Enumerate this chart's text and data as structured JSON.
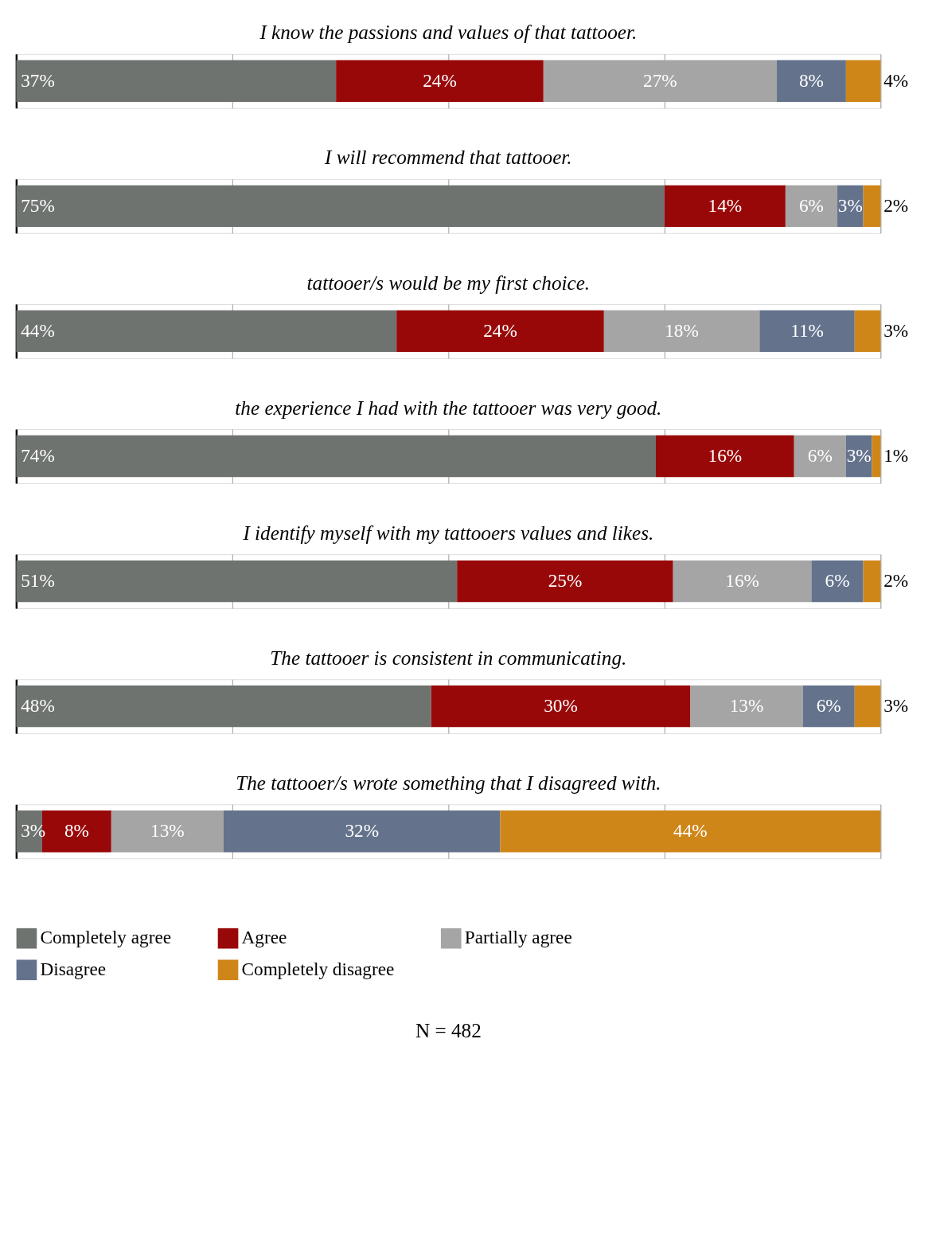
{
  "chart_data": [
    {
      "type": "bar",
      "orientation": "horizontal",
      "stacked": true,
      "title": "I know the passions and values of that tattooer.",
      "categories": [
        null
      ],
      "xlim": [
        0,
        100
      ],
      "xticks": [
        {
          "value": 0,
          "label": null
        },
        {
          "value": 25,
          "label": null
        },
        {
          "value": 50,
          "label": null
        },
        {
          "value": 75,
          "label": null
        },
        {
          "value": 100,
          "label": null
        }
      ],
      "tick_labels": false,
      "grid": "x",
      "legend": false,
      "series": [
        {
          "color": "#6e7370",
          "values": [
            37
          ],
          "value_labels": [
            "37%"
          ]
        },
        {
          "color": "#990808",
          "values": [
            24
          ],
          "value_labels": [
            "24%"
          ]
        },
        {
          "color": "#a5a5a5",
          "values": [
            27
          ],
          "value_labels": [
            "27%"
          ]
        },
        {
          "color": "#64728c",
          "values": [
            8
          ],
          "value_labels": [
            "8%"
          ]
        },
        {
          "color": "#cf8619",
          "values": [
            4
          ],
          "value_labels": [
            "4%"
          ]
        }
      ]
    },
    {
      "type": "bar",
      "orientation": "horizontal",
      "stacked": true,
      "title": "I will recommend that tattooer.",
      "categories": [
        null
      ],
      "xlim": [
        0,
        100
      ],
      "xticks": [
        {
          "value": 0,
          "label": null
        },
        {
          "value": 25,
          "label": null
        },
        {
          "value": 50,
          "label": null
        },
        {
          "value": 75,
          "label": null
        },
        {
          "value": 100,
          "label": null
        }
      ],
      "tick_labels": false,
      "grid": "x",
      "legend": false,
      "series": [
        {
          "color": "#6e7370",
          "values": [
            75
          ],
          "value_labels": [
            "75%"
          ]
        },
        {
          "color": "#990808",
          "values": [
            14
          ],
          "value_labels": [
            "14%"
          ]
        },
        {
          "color": "#a5a5a5",
          "values": [
            6
          ],
          "value_labels": [
            "6%"
          ]
        },
        {
          "color": "#64728c",
          "values": [
            3
          ],
          "value_labels": [
            "3%"
          ]
        },
        {
          "color": "#cf8619",
          "values": [
            2
          ],
          "value_labels": [
            "2%"
          ]
        }
      ]
    },
    {
      "type": "bar",
      "orientation": "horizontal",
      "stacked": true,
      "title": "tattooer/s would be my first choice.",
      "categories": [
        null
      ],
      "xlim": [
        0,
        100
      ],
      "xticks": [
        {
          "value": 0,
          "label": null
        },
        {
          "value": 25,
          "label": null
        },
        {
          "value": 50,
          "label": null
        },
        {
          "value": 75,
          "label": null
        },
        {
          "value": 100,
          "label": null
        }
      ],
      "tick_labels": false,
      "grid": "x",
      "legend": false,
      "series": [
        {
          "color": "#6e7370",
          "values": [
            44
          ],
          "value_labels": [
            "44%"
          ]
        },
        {
          "color": "#990808",
          "values": [
            24
          ],
          "value_labels": [
            "24%"
          ]
        },
        {
          "color": "#a5a5a5",
          "values": [
            18
          ],
          "value_labels": [
            "18%"
          ]
        },
        {
          "color": "#64728c",
          "values": [
            11
          ],
          "value_labels": [
            "11%"
          ]
        },
        {
          "color": "#cf8619",
          "values": [
            3
          ],
          "value_labels": [
            "3%"
          ]
        }
      ]
    },
    {
      "type": "bar",
      "orientation": "horizontal",
      "stacked": true,
      "title": "the experience I had with the tattooer was very good.",
      "categories": [
        null
      ],
      "xlim": [
        0,
        100
      ],
      "xticks": [
        {
          "value": 0,
          "label": null
        },
        {
          "value": 25,
          "label": null
        },
        {
          "value": 50,
          "label": null
        },
        {
          "value": 75,
          "label": null
        },
        {
          "value": 100,
          "label": null
        }
      ],
      "tick_labels": false,
      "grid": "x",
      "legend": false,
      "series": [
        {
          "color": "#6e7370",
          "values": [
            74
          ],
          "value_labels": [
            "74%"
          ]
        },
        {
          "color": "#990808",
          "values": [
            16
          ],
          "value_labels": [
            "16%"
          ]
        },
        {
          "color": "#a5a5a5",
          "values": [
            6
          ],
          "value_labels": [
            "6%"
          ]
        },
        {
          "color": "#64728c",
          "values": [
            3
          ],
          "value_labels": [
            "3%"
          ]
        },
        {
          "color": "#cf8619",
          "values": [
            1
          ],
          "value_labels": [
            "1%"
          ]
        }
      ]
    },
    {
      "type": "bar",
      "orientation": "horizontal",
      "stacked": true,
      "title": "I identify myself with my tattooers values and likes.",
      "categories": [
        null
      ],
      "xlim": [
        0,
        100
      ],
      "xticks": [
        {
          "value": 0,
          "label": null
        },
        {
          "value": 25,
          "label": null
        },
        {
          "value": 50,
          "label": null
        },
        {
          "value": 75,
          "label": null
        },
        {
          "value": 100,
          "label": null
        }
      ],
      "tick_labels": false,
      "grid": "x",
      "legend": false,
      "series": [
        {
          "color": "#6e7370",
          "values": [
            51
          ],
          "value_labels": [
            "51%"
          ]
        },
        {
          "color": "#990808",
          "values": [
            25
          ],
          "value_labels": [
            "25%"
          ]
        },
        {
          "color": "#a5a5a5",
          "values": [
            16
          ],
          "value_labels": [
            "16%"
          ]
        },
        {
          "color": "#64728c",
          "values": [
            6
          ],
          "value_labels": [
            "6%"
          ]
        },
        {
          "color": "#cf8619",
          "values": [
            2
          ],
          "value_labels": [
            "2%"
          ]
        }
      ]
    },
    {
      "type": "bar",
      "orientation": "horizontal",
      "stacked": true,
      "title": "The tattooer is consistent in communicating.",
      "categories": [
        null
      ],
      "xlim": [
        0,
        100
      ],
      "xticks": [
        {
          "value": 0,
          "label": null
        },
        {
          "value": 25,
          "label": null
        },
        {
          "value": 50,
          "label": null
        },
        {
          "value": 75,
          "label": null
        },
        {
          "value": 100,
          "label": null
        }
      ],
      "tick_labels": false,
      "grid": "x",
      "legend": false,
      "series": [
        {
          "color": "#6e7370",
          "values": [
            48
          ],
          "value_labels": [
            "48%"
          ]
        },
        {
          "color": "#990808",
          "values": [
            30
          ],
          "value_labels": [
            "30%"
          ]
        },
        {
          "color": "#a5a5a5",
          "values": [
            13
          ],
          "value_labels": [
            "13%"
          ]
        },
        {
          "color": "#64728c",
          "values": [
            6
          ],
          "value_labels": [
            "6%"
          ]
        },
        {
          "color": "#cf8619",
          "values": [
            3
          ],
          "value_labels": [
            "3%"
          ]
        }
      ]
    },
    {
      "type": "bar",
      "orientation": "horizontal",
      "stacked": true,
      "title": "The tattooer/s wrote something that I disagreed with.",
      "categories": [
        null
      ],
      "xlim": [
        0,
        100
      ],
      "xticks": [
        {
          "value": 0,
          "label": null
        },
        {
          "value": 25,
          "label": null
        },
        {
          "value": 50,
          "label": null
        },
        {
          "value": 75,
          "label": null
        },
        {
          "value": 100,
          "label": null
        }
      ],
      "tick_labels": false,
      "grid": "x",
      "legend": "bottom",
      "annotations": [
        "N = 482"
      ],
      "series": [
        {
          "name": "Completely agree",
          "color": "#6e7370",
          "values": [
            3
          ],
          "value_labels": [
            "3%"
          ]
        },
        {
          "name": "Agree",
          "color": "#990808",
          "values": [
            8
          ],
          "value_labels": [
            "8%"
          ]
        },
        {
          "name": "Partially agree",
          "color": "#a5a5a5",
          "values": [
            13
          ],
          "value_labels": [
            "13%"
          ]
        },
        {
          "name": "Disagree",
          "color": "#64728c",
          "values": [
            32
          ],
          "value_labels": [
            "32%"
          ]
        },
        {
          "name": "Completely disagree",
          "color": "#cf8619",
          "values": [
            44
          ],
          "value_labels": [
            "44%"
          ]
        }
      ]
    }
  ]
}
